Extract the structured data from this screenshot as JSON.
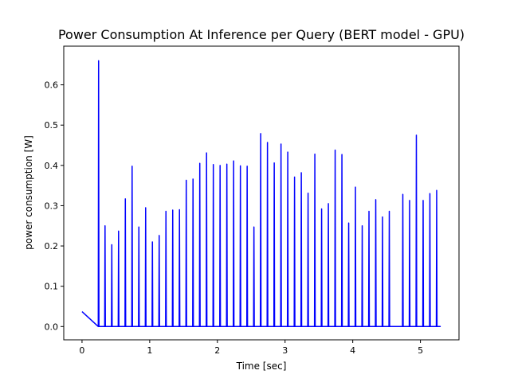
{
  "chart_data": {
    "type": "line",
    "title": "Power Consumption At Inference per Query (BERT model - GPU)",
    "xlabel": "Time [sec]",
    "ylabel": "power consumption [W]",
    "xlim": [
      -0.27,
      5.57
    ],
    "ylim": [
      -0.033,
      0.696
    ],
    "xticks": [
      0,
      1,
      2,
      3,
      4,
      5
    ],
    "xtick_labels": [
      "0",
      "1",
      "2",
      "3",
      "4",
      "5"
    ],
    "yticks": [
      0.0,
      0.1,
      0.2,
      0.3,
      0.4,
      0.5,
      0.6
    ],
    "ytick_labels": [
      "0.0",
      "0.1",
      "0.2",
      "0.3",
      "0.4",
      "0.5",
      "0.6"
    ],
    "grid": false,
    "legend": "none",
    "series_color": "#0000ff",
    "series": [
      {
        "x": [
          0.0,
          0.24,
          0.245,
          0.25,
          0.255,
          0.335,
          0.34,
          0.345,
          0.435,
          0.44,
          0.445,
          0.535,
          0.54,
          0.545,
          0.635,
          0.64,
          0.645,
          0.735,
          0.74,
          0.745,
          0.835,
          0.84,
          0.845,
          0.935,
          0.94,
          0.945,
          1.035,
          1.04,
          1.045,
          1.135,
          1.14,
          1.145,
          1.235,
          1.24,
          1.245,
          1.335,
          1.34,
          1.345,
          1.435,
          1.44,
          1.445,
          1.535,
          1.54,
          1.545,
          1.635,
          1.64,
          1.645,
          1.735,
          1.74,
          1.745,
          1.835,
          1.84,
          1.845,
          1.935,
          1.94,
          1.945,
          2.035,
          2.04,
          2.045,
          2.135,
          2.14,
          2.145,
          2.235,
          2.24,
          2.245,
          2.335,
          2.34,
          2.345,
          2.435,
          2.44,
          2.445,
          2.535,
          2.54,
          2.545,
          2.635,
          2.64,
          2.645,
          2.735,
          2.74,
          2.745,
          2.835,
          2.84,
          2.845,
          2.935,
          2.94,
          2.945,
          3.035,
          3.04,
          3.045,
          3.135,
          3.14,
          3.145,
          3.235,
          3.24,
          3.245,
          3.335,
          3.34,
          3.345,
          3.435,
          3.44,
          3.445,
          3.535,
          3.54,
          3.545,
          3.635,
          3.64,
          3.645,
          3.735,
          3.74,
          3.745,
          3.835,
          3.84,
          3.845,
          3.935,
          3.94,
          3.945,
          4.035,
          4.04,
          4.045,
          4.135,
          4.14,
          4.145,
          4.235,
          4.24,
          4.245,
          4.335,
          4.34,
          4.345,
          4.435,
          4.44,
          4.445,
          4.535,
          4.54,
          4.545,
          4.735,
          4.74,
          4.745,
          4.835,
          4.84,
          4.845,
          4.935,
          4.94,
          4.945,
          5.035,
          5.04,
          5.045,
          5.135,
          5.14,
          5.145,
          5.235,
          5.24,
          5.245,
          5.3
        ],
        "y": [
          0.037,
          0.0,
          0.66,
          0.0,
          0.0,
          0.0,
          0.25,
          0.0,
          0.0,
          0.203,
          0.0,
          0.0,
          0.237,
          0.0,
          0.0,
          0.317,
          0.0,
          0.0,
          0.398,
          0.0,
          0.0,
          0.247,
          0.0,
          0.0,
          0.295,
          0.0,
          0.0,
          0.21,
          0.0,
          0.0,
          0.226,
          0.0,
          0.0,
          0.286,
          0.0,
          0.0,
          0.289,
          0.0,
          0.0,
          0.29,
          0.0,
          0.0,
          0.363,
          0.0,
          0.0,
          0.366,
          0.0,
          0.0,
          0.405,
          0.0,
          0.0,
          0.431,
          0.0,
          0.0,
          0.402,
          0.0,
          0.0,
          0.4,
          0.0,
          0.0,
          0.403,
          0.0,
          0.0,
          0.411,
          0.0,
          0.0,
          0.399,
          0.0,
          0.0,
          0.398,
          0.0,
          0.0,
          0.247,
          0.0,
          0.0,
          0.479,
          0.0,
          0.0,
          0.457,
          0.0,
          0.0,
          0.406,
          0.0,
          0.0,
          0.453,
          0.0,
          0.0,
          0.433,
          0.0,
          0.0,
          0.371,
          0.0,
          0.0,
          0.382,
          0.0,
          0.0,
          0.331,
          0.0,
          0.0,
          0.428,
          0.0,
          0.0,
          0.292,
          0.0,
          0.0,
          0.305,
          0.0,
          0.0,
          0.438,
          0.0,
          0.0,
          0.427,
          0.0,
          0.0,
          0.257,
          0.0,
          0.0,
          0.346,
          0.0,
          0.0,
          0.25,
          0.0,
          0.0,
          0.286,
          0.0,
          0.0,
          0.315,
          0.0,
          0.0,
          0.272,
          0.0,
          0.0,
          0.286,
          0.0,
          0.0,
          0.328,
          0.0,
          0.0,
          0.313,
          0.0,
          0.0,
          0.475,
          0.0,
          0.0,
          0.313,
          0.0,
          0.0,
          0.33,
          0.0,
          0.0,
          0.338,
          0.0,
          0.0
        ]
      }
    ]
  }
}
